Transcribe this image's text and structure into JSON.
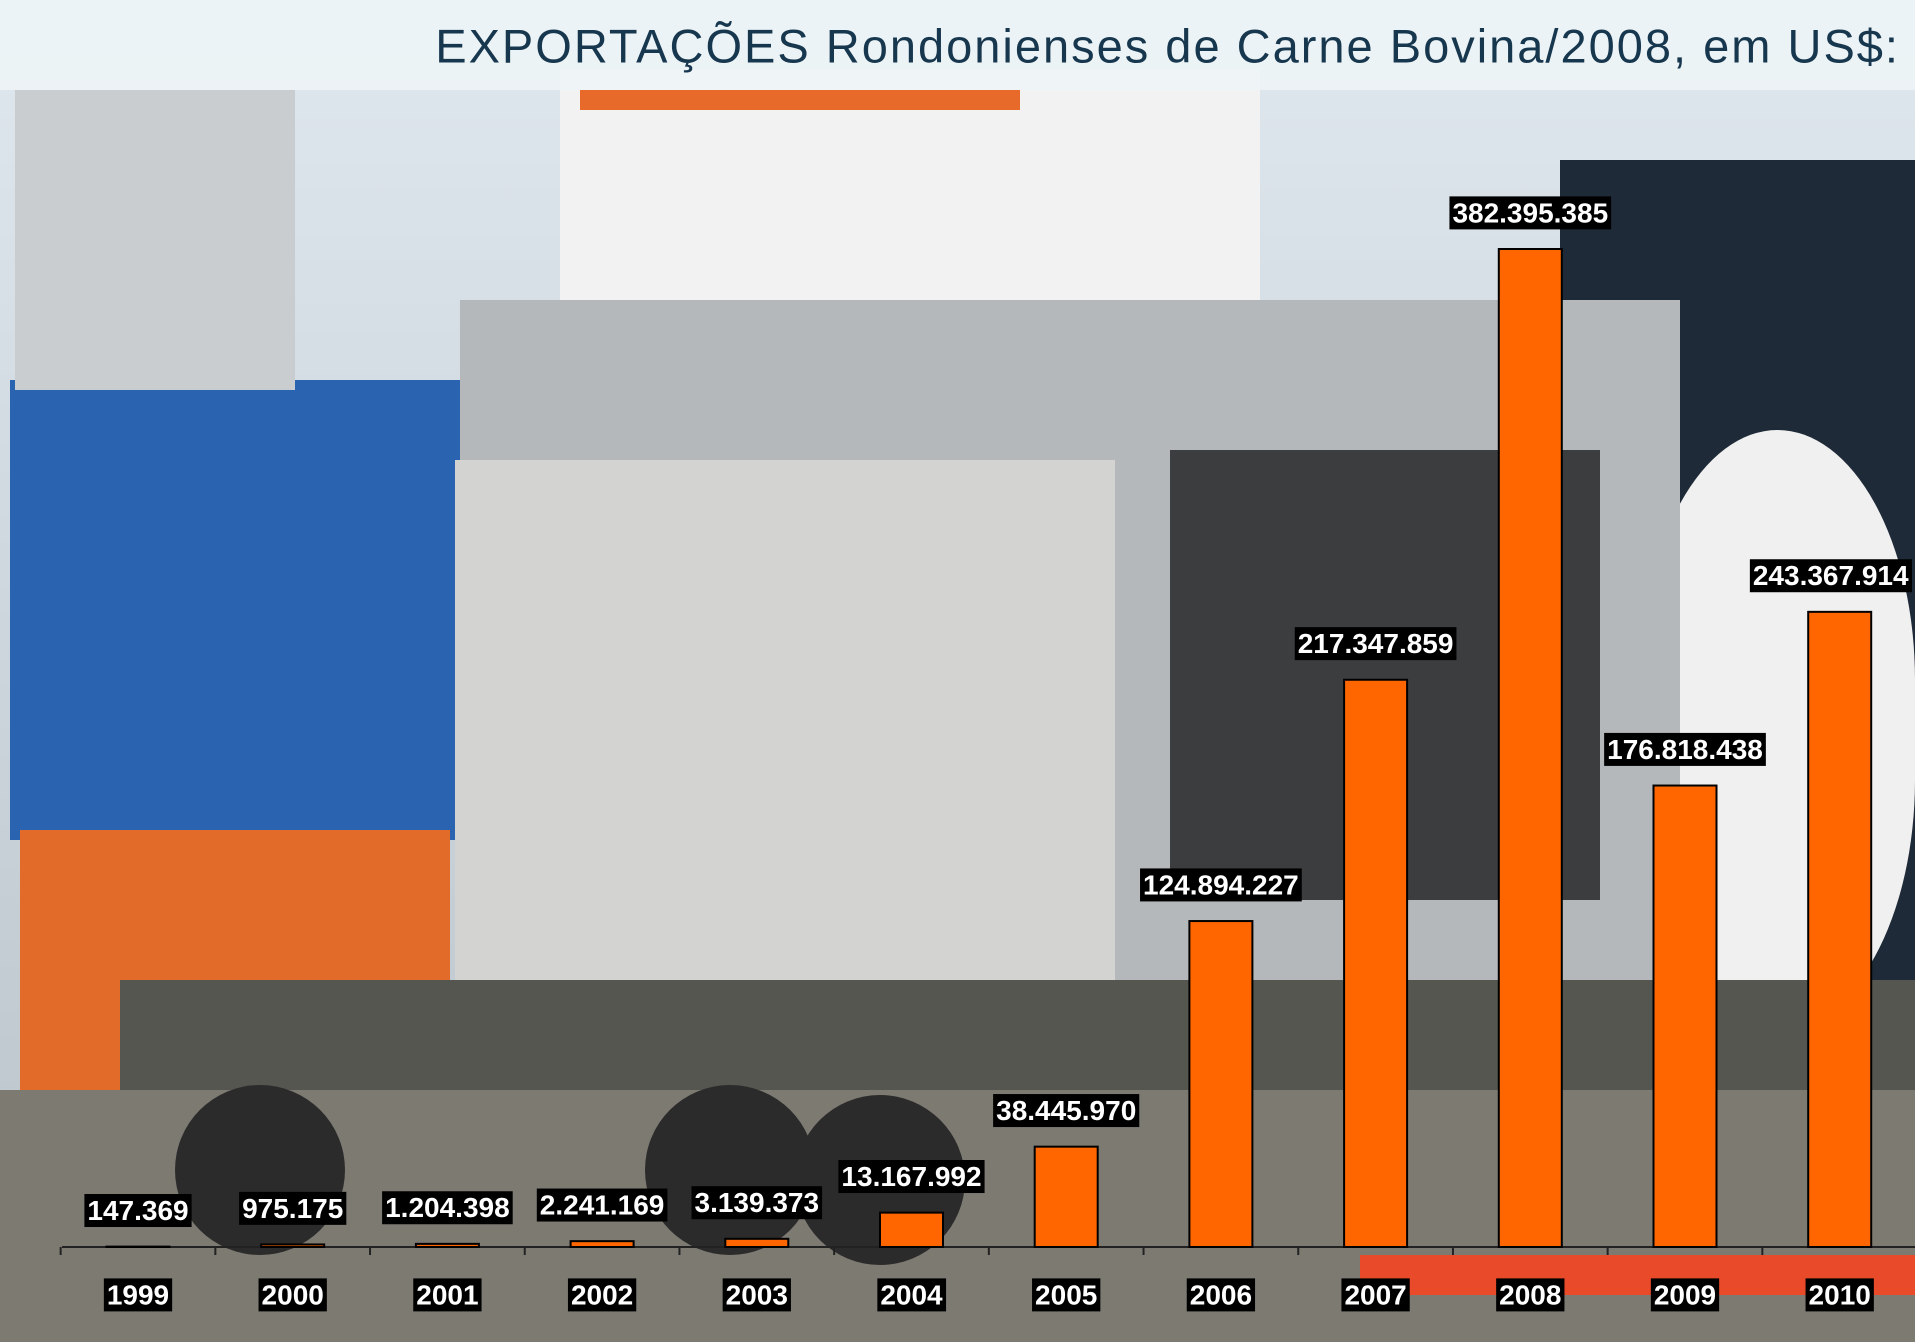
{
  "chart_data": {
    "type": "bar",
    "title": "EXPORTAÇÕES Rondonienses de Carne Bovina/2008, em US$:",
    "categories": [
      "1999",
      "2000",
      "2001",
      "2002",
      "2003",
      "2004",
      "2005",
      "2006",
      "2007",
      "2008",
      "2009",
      "2010"
    ],
    "values": [
      147369,
      975175,
      1204398,
      2241169,
      3139373,
      13167992,
      38445970,
      124894227,
      217347859,
      382395385,
      176818438,
      243367914
    ],
    "value_labels": [
      "147.369",
      "975.175",
      "1.204.398",
      "2.241.169",
      "3.139.373",
      "13.167.992",
      "38.445.970",
      "124.894.227",
      "217.347.859",
      "382.395.385",
      "176.818.438",
      "243.367.914"
    ],
    "color": "#ff6600"
  }
}
